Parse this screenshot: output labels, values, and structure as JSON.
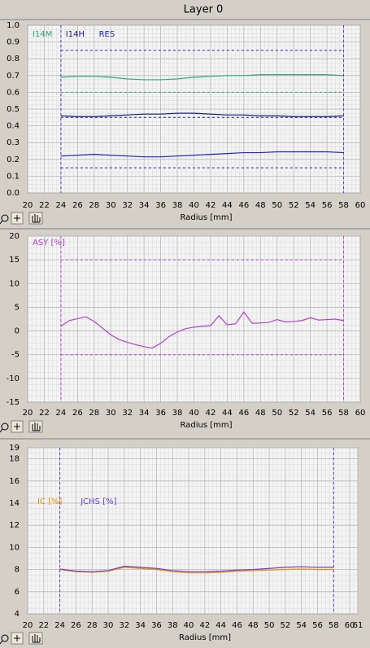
{
  "title": "Layer 0",
  "chart_data": [
    {
      "type": "line",
      "xlabel": "Radius [mm]",
      "x": [
        24,
        26,
        28,
        30,
        32,
        34,
        36,
        38,
        40,
        42,
        44,
        46,
        48,
        50,
        52,
        54,
        56,
        58
      ],
      "series": [
        {
          "name": "I14M",
          "color": "#2aa784",
          "values": [
            0.69,
            0.695,
            0.695,
            0.69,
            0.68,
            0.675,
            0.675,
            0.68,
            0.69,
            0.695,
            0.7,
            0.7,
            0.705,
            0.705,
            0.705,
            0.705,
            0.705,
            0.7
          ]
        },
        {
          "name": "I14H",
          "color": "#1a1a8a",
          "values": [
            0.46,
            0.455,
            0.455,
            0.46,
            0.465,
            0.47,
            0.47,
            0.475,
            0.475,
            0.47,
            0.465,
            0.465,
            0.46,
            0.46,
            0.455,
            0.455,
            0.455,
            0.46
          ]
        },
        {
          "name": "RES",
          "color": "#2222c8",
          "values": [
            0.22,
            0.225,
            0.23,
            0.225,
            0.22,
            0.215,
            0.215,
            0.22,
            0.225,
            0.23,
            0.235,
            0.24,
            0.24,
            0.245,
            0.245,
            0.245,
            0.245,
            0.24
          ]
        }
      ],
      "hlines": [
        {
          "value": 0.85,
          "color": "#2222c8"
        },
        {
          "value": 0.6,
          "color": "#2aa784"
        },
        {
          "value": 0.45,
          "color": "#1a1a8a"
        },
        {
          "value": 0.15,
          "color": "#2222c8"
        }
      ],
      "vlines": [
        24,
        58
      ],
      "vline_color": "#5a2ee0",
      "xlim": [
        20,
        60
      ],
      "xticks": [
        20,
        22,
        24,
        26,
        28,
        30,
        32,
        34,
        36,
        38,
        40,
        42,
        44,
        46,
        48,
        50,
        52,
        54,
        56,
        58,
        60
      ],
      "ylim": [
        0,
        1
      ],
      "yticks": [
        {
          "value": 0,
          "label": "0.0"
        },
        0.1,
        0.2,
        0.3,
        0.4,
        0.5,
        0.6,
        0.7,
        0.8,
        0.9,
        {
          "value": 1,
          "label": "1.0"
        }
      ],
      "grid": true
    },
    {
      "type": "line",
      "xlabel": "Radius [mm]",
      "x": [
        24,
        25,
        26,
        27,
        28,
        29,
        30,
        31,
        32,
        33,
        34,
        35,
        36,
        37,
        38,
        39,
        40,
        41,
        42,
        43,
        44,
        45,
        46,
        47,
        48,
        49,
        50,
        51,
        52,
        53,
        54,
        55,
        56,
        57,
        58
      ],
      "series": [
        {
          "name": "ASY [%]",
          "color": "#b040d0",
          "values": [
            1.0,
            2.2,
            2.6,
            3.0,
            2.0,
            0.6,
            -0.8,
            -1.8,
            -2.4,
            -2.9,
            -3.3,
            -3.6,
            -2.6,
            -1.2,
            -0.2,
            0.5,
            0.8,
            1.0,
            1.1,
            3.2,
            1.3,
            1.5,
            4.0,
            1.6,
            1.7,
            1.8,
            2.4,
            1.9,
            2.0,
            2.2,
            2.8,
            2.3,
            2.4,
            2.5,
            2.2
          ]
        }
      ],
      "hlines": [
        {
          "value": 15,
          "color": "#b040d0"
        },
        {
          "value": -5,
          "color": "#b040d0"
        }
      ],
      "vlines": [
        24,
        58
      ],
      "vline_color": "#b040d0",
      "xlim": [
        20,
        60
      ],
      "xticks": [
        20,
        22,
        24,
        26,
        28,
        30,
        32,
        34,
        36,
        38,
        40,
        42,
        44,
        46,
        48,
        50,
        52,
        54,
        56,
        58,
        60
      ],
      "ylim": [
        -15,
        20
      ],
      "yticks": [
        -15,
        -10,
        -5,
        0,
        5,
        10,
        15,
        20
      ],
      "grid": true
    },
    {
      "type": "line",
      "xlabel": "Radius [mm]",
      "x": [
        24,
        26,
        28,
        30,
        32,
        34,
        36,
        38,
        40,
        42,
        44,
        46,
        48,
        50,
        52,
        54,
        56,
        58
      ],
      "series": [
        {
          "name": "IC [%]",
          "color": "#f09000",
          "values": [
            8.0,
            7.8,
            7.75,
            7.85,
            8.2,
            8.1,
            8.0,
            7.8,
            7.7,
            7.7,
            7.75,
            7.85,
            7.9,
            7.95,
            8.0,
            8.05,
            8.0,
            8.0
          ]
        },
        {
          "name": "JCHS [%]",
          "color": "#6a3ee0",
          "values": [
            8.05,
            7.85,
            7.8,
            7.9,
            8.3,
            8.2,
            8.1,
            7.9,
            7.8,
            7.8,
            7.85,
            7.95,
            8.0,
            8.1,
            8.2,
            8.25,
            8.2,
            8.2
          ]
        }
      ],
      "hlines": [],
      "vlines": [
        24,
        58
      ],
      "vline_color": "#5a2ee0",
      "xlim": [
        20,
        61
      ],
      "xticks": [
        20,
        22,
        24,
        26,
        28,
        30,
        32,
        34,
        36,
        38,
        40,
        42,
        44,
        46,
        48,
        50,
        52,
        54,
        56,
        58,
        60,
        61
      ],
      "ylim": [
        4,
        19
      ],
      "yticks": [
        4,
        6,
        8,
        10,
        12,
        14,
        16,
        18,
        19
      ],
      "grid": true
    }
  ]
}
